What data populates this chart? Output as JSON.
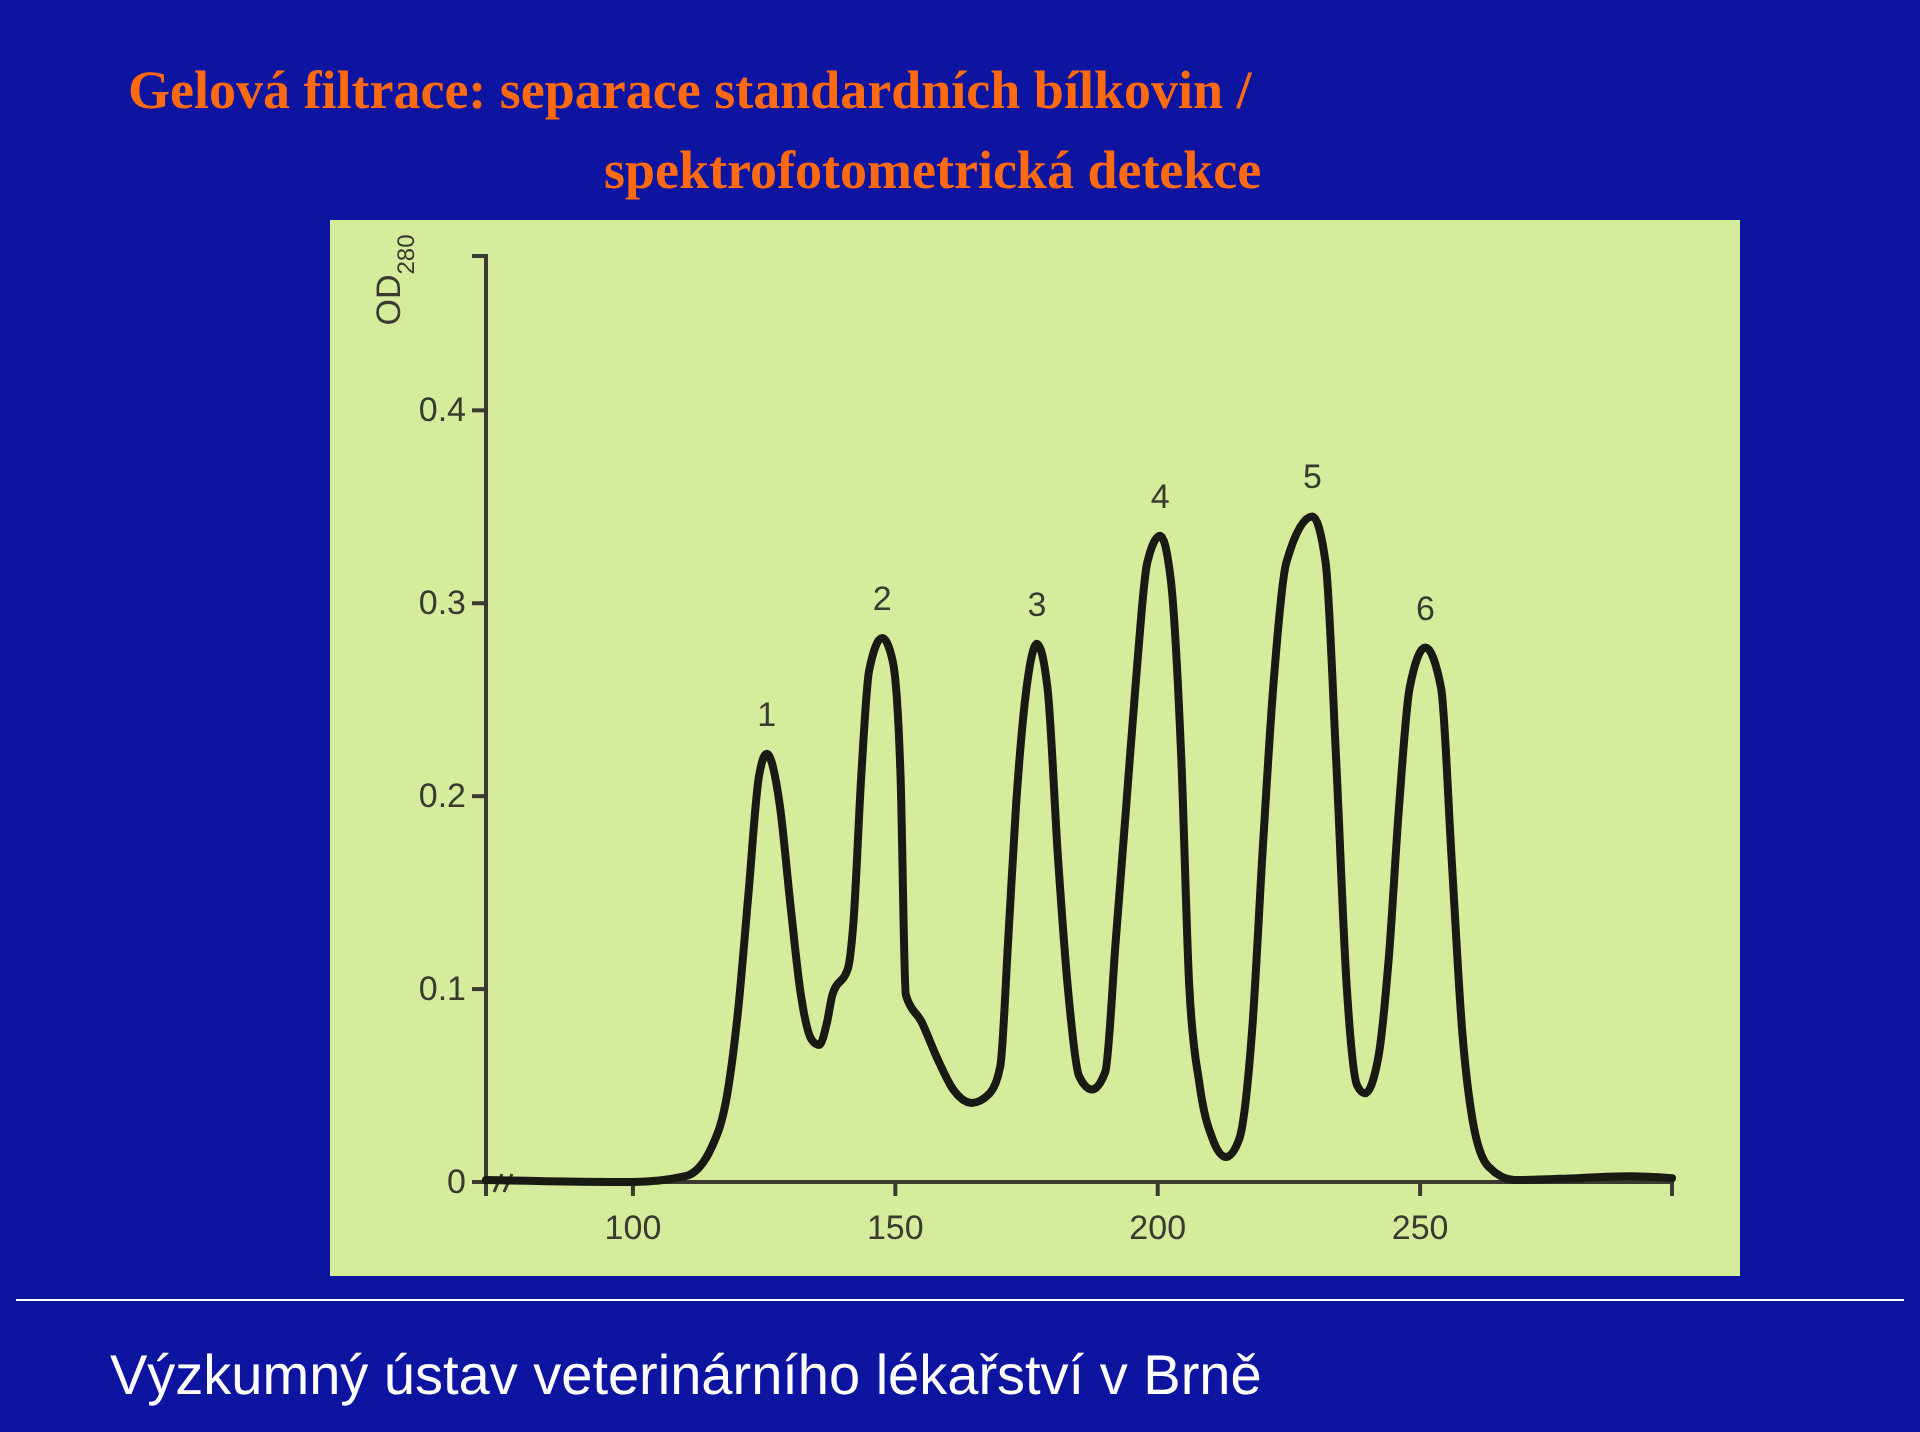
{
  "chart_data": {
    "type": "line",
    "title": "Gelová filtrace: separace standardních bílkovin /",
    "subtitle": "spektrofotometrická detekce",
    "ylabel": "OD$_{280}$",
    "x": [
      72,
      100,
      110,
      115,
      118,
      120,
      122,
      124,
      125.5,
      128,
      130,
      132,
      134,
      135.5,
      137,
      138,
      141,
      142,
      143.5,
      145,
      147.5,
      149.5,
      151,
      152,
      155,
      158,
      161,
      164.5,
      168,
      170,
      171.5,
      173,
      175,
      177,
      179,
      181,
      183,
      185,
      187.5,
      190,
      192,
      194,
      196,
      198,
      200.5,
      202.5,
      204.5,
      206,
      208,
      210.5,
      213,
      215.5,
      218,
      220,
      222,
      224.5,
      229.5,
      232,
      234,
      236,
      238,
      239.5,
      242,
      244,
      246,
      248,
      251,
      254,
      256,
      258,
      260,
      263,
      268,
      280,
      290,
      298
    ],
    "series": [
      {
        "color": "#1a1a14",
        "values": [
          0.001,
          0,
          0.003,
          0.018,
          0.046,
          0.088,
          0.149,
          0.21,
          0.222,
          0.195,
          0.144,
          0.097,
          0.074,
          0.071,
          0.083,
          0.097,
          0.111,
          0.134,
          0.21,
          0.265,
          0.282,
          0.27,
          0.21,
          0.097,
          0.083,
          0.064,
          0.048,
          0.041,
          0.046,
          0.06,
          0.125,
          0.195,
          0.256,
          0.279,
          0.256,
          0.168,
          0.097,
          0.055,
          0.048,
          0.057,
          0.125,
          0.195,
          0.265,
          0.321,
          0.335,
          0.312,
          0.219,
          0.102,
          0.05,
          0.022,
          0.013,
          0.022,
          0.079,
          0.172,
          0.256,
          0.321,
          0.345,
          0.321,
          0.219,
          0.102,
          0.05,
          0.046,
          0.064,
          0.115,
          0.195,
          0.256,
          0.277,
          0.256,
          0.168,
          0.079,
          0.032,
          0.008,
          0.001,
          0.002,
          0.003,
          0.002
        ]
      }
    ],
    "xlim": [
      72,
      298
    ],
    "xticks": [
      100,
      150,
      200,
      250
    ],
    "ylim": [
      0,
      0.48
    ],
    "yticks": [
      0,
      0.1,
      0.2,
      0.3,
      0.4
    ],
    "grid": false,
    "marker": "none",
    "line_style": "solid",
    "annotations": [
      {
        "text": "1",
        "x": 125.5,
        "y": 0.222
      },
      {
        "text": "2",
        "x": 147.5,
        "y": 0.282
      },
      {
        "text": "3",
        "x": 177,
        "y": 0.279
      },
      {
        "text": "4",
        "x": 200.5,
        "y": 0.335
      },
      {
        "text": "5",
        "x": 229.5,
        "y": 0.345
      },
      {
        "text": "6",
        "x": 251,
        "y": 0.277
      },
      "Výzkumný ústav veterinárního lékařství v Brně"
    ]
  }
}
